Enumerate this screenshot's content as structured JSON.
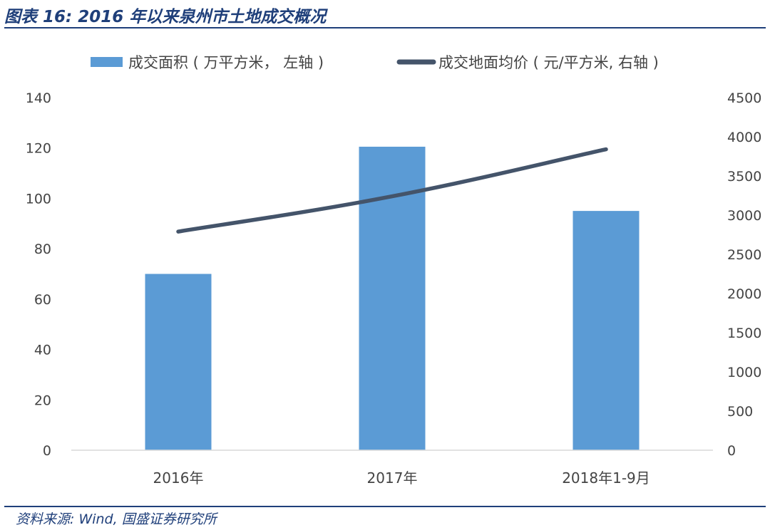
{
  "title": "图表 16:  2016 年以来泉州市土地成交概况",
  "source": "资料来源: Wind, 国盛证券研究所",
  "chart_data": {
    "type": "bar",
    "categories": [
      "2016年",
      "2017年",
      "2018年1-9月"
    ],
    "series": [
      {
        "name": "成交面积 ( 万平方米， 左轴 )",
        "type": "bar",
        "axis": "left",
        "color": "#5b9bd5",
        "values": [
          70,
          120.5,
          95
        ]
      },
      {
        "name": "成交地面均价 ( 元/平方米, 右轴 )",
        "type": "line",
        "axis": "right",
        "color": "#44546a",
        "values": [
          2790,
          3240,
          3840
        ]
      }
    ],
    "left_axis": {
      "ylim": [
        0,
        140
      ],
      "ticks": [
        "0",
        "20",
        "40",
        "60",
        "80",
        "100",
        "120",
        "140"
      ]
    },
    "right_axis": {
      "ylim": [
        0,
        4500
      ],
      "ticks": [
        "0",
        "500",
        "1000",
        "1500",
        "2000",
        "2500",
        "3000",
        "3500",
        "4000",
        "4500"
      ]
    },
    "legend_position": "top",
    "grid": false
  }
}
